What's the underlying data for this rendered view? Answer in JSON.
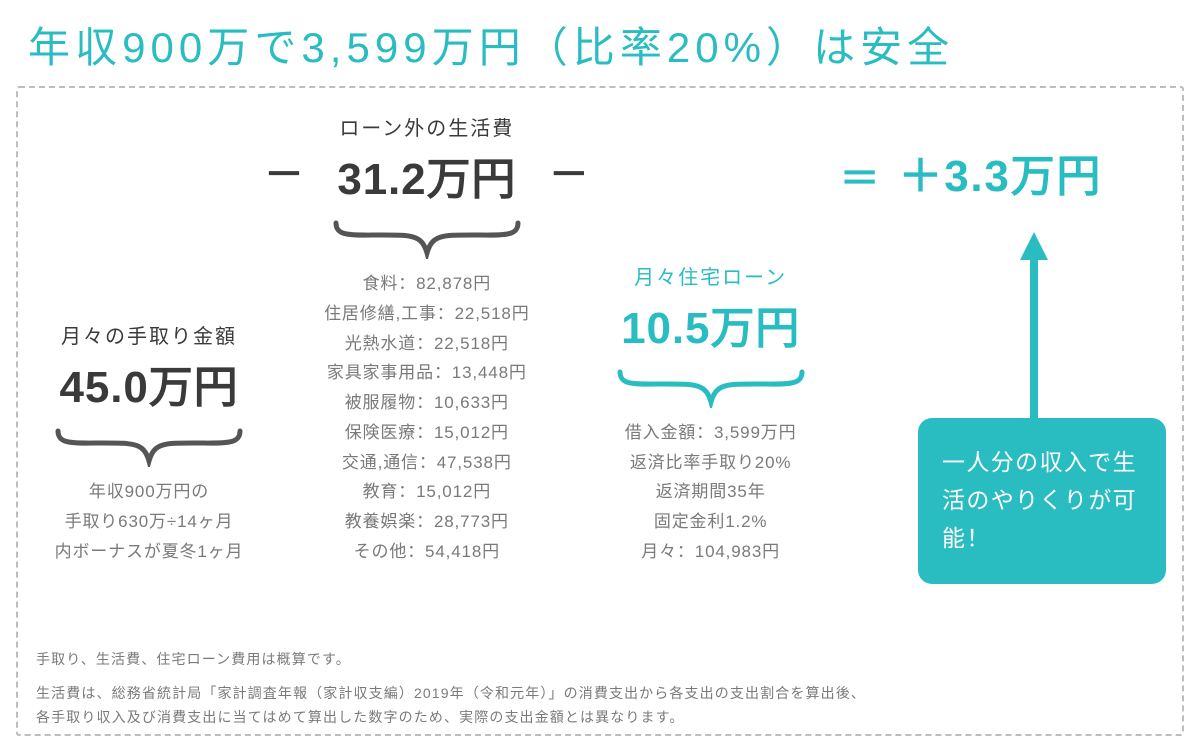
{
  "colors": {
    "accent": "#29bcc1",
    "dark": "#3a3a3a",
    "gray": "#7a7a7a",
    "border": "#bdbdbd",
    "white": "#ffffff"
  },
  "title_parts": {
    "a": "年収900万で3,599万円（比率20%）",
    "b": "は安全"
  },
  "equation": {
    "col1": {
      "label": "月々の手取り金額",
      "value": "45.0万円"
    },
    "op1": "－",
    "col2": {
      "label": "ローン外の生活費",
      "value": "31.2万円"
    },
    "op2": "－",
    "col3": {
      "label": "月々住宅ローン",
      "value": "10.5万円"
    },
    "eq": "＝",
    "result": "＋3.3万円"
  },
  "details": {
    "col1": [
      "年収900万円の",
      "手取り630万÷14ヶ月",
      "内ボーナスが夏冬1ヶ月"
    ],
    "col2": [
      "食料：82,878円",
      "住居修繕,工事：22,518円",
      "光熱水道：22,518円",
      "家具家事用品：13,448円",
      "被服履物：10,633円",
      "保険医療：15,012円",
      "交通,通信：47,538円",
      "教育：15,012円",
      "教養娯楽：28,773円",
      "その他：54,418円"
    ],
    "col3": [
      "借入金額：3,599万円",
      "返済比率手取り20%",
      "返済期間35年",
      "固定金利1.2%",
      "月々：104,983円"
    ]
  },
  "callout": "一人分の収入で生活のやりくりが可能！",
  "footnotes": {
    "f1": "手取り、生活費、住宅ローン費用は概算です。",
    "f2": "生活費は、総務省統計局「家計調査年報（家計収支編）2019年（令和元年）」の消費支出から各支出の支出割合を算出後、各手取り収入及び消費支出に当てはめて算出した数字のため、実際の支出金額とは異なります。"
  }
}
